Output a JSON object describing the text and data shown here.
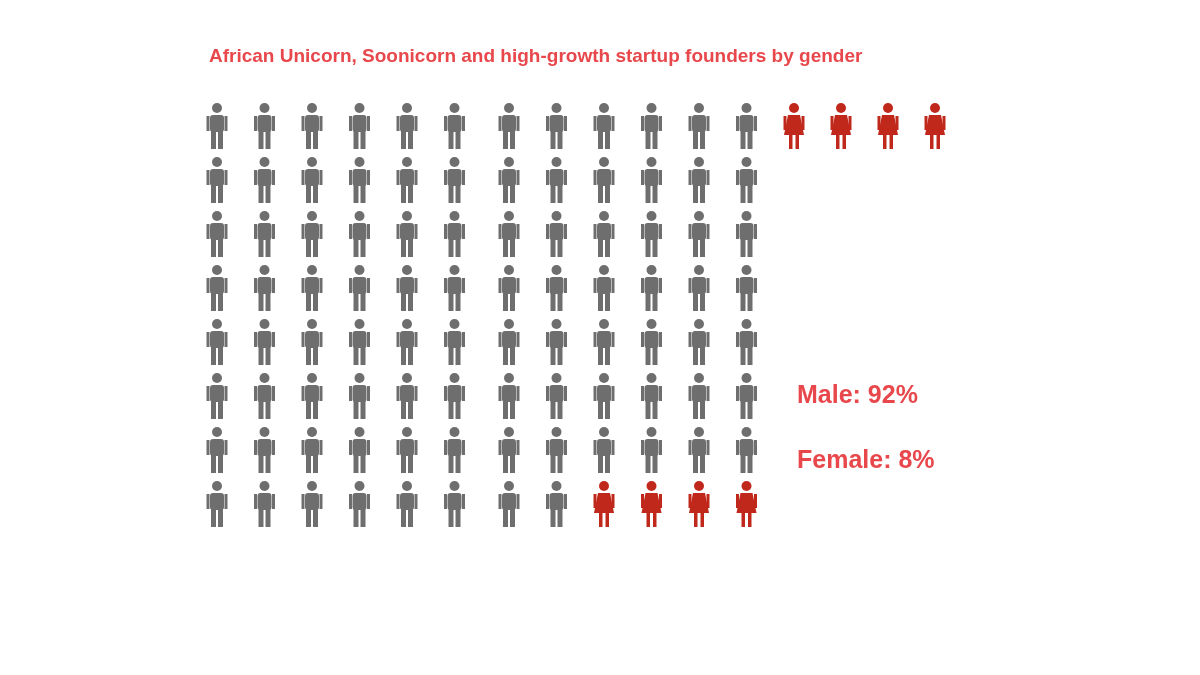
{
  "chart_data": {
    "type": "other",
    "title": "African Unicorn, Soonicorn and high-growth startup founders by gender",
    "values": [
      92,
      8
    ],
    "colors": [
      "#6e6e6e",
      "#c0281c"
    ],
    "value_labels": [
      "Male: 92%",
      "Female: 8%"
    ]
  }
}
